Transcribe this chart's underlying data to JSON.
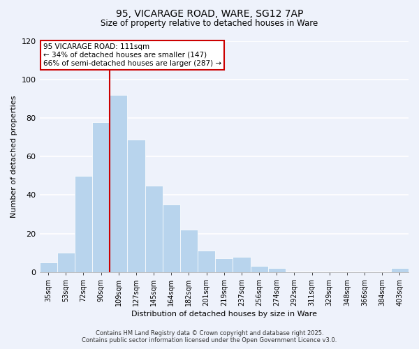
{
  "title_line1": "95, VICARAGE ROAD, WARE, SG12 7AP",
  "title_line2": "Size of property relative to detached houses in Ware",
  "xlabel": "Distribution of detached houses by size in Ware",
  "ylabel": "Number of detached properties",
  "categories": [
    "35sqm",
    "53sqm",
    "72sqm",
    "90sqm",
    "109sqm",
    "127sqm",
    "145sqm",
    "164sqm",
    "182sqm",
    "201sqm",
    "219sqm",
    "237sqm",
    "256sqm",
    "274sqm",
    "292sqm",
    "311sqm",
    "329sqm",
    "348sqm",
    "366sqm",
    "384sqm",
    "403sqm"
  ],
  "values": [
    5,
    10,
    50,
    78,
    92,
    69,
    45,
    35,
    22,
    11,
    7,
    8,
    3,
    2,
    0,
    0,
    0,
    0,
    0,
    0,
    2
  ],
  "bar_color": "#b8d4ed",
  "bar_edge_color": "#b8d4ed",
  "highlight_line_index": 4,
  "highlight_line_color": "#cc0000",
  "ylim": [
    0,
    120
  ],
  "yticks": [
    0,
    20,
    40,
    60,
    80,
    100,
    120
  ],
  "annotation_title": "95 VICARAGE ROAD: 111sqm",
  "annotation_line1": "← 34% of detached houses are smaller (147)",
  "annotation_line2": "66% of semi-detached houses are larger (287) →",
  "annotation_box_facecolor": "#ffffff",
  "annotation_box_edgecolor": "#cc0000",
  "footer_line1": "Contains HM Land Registry data © Crown copyright and database right 2025.",
  "footer_line2": "Contains public sector information licensed under the Open Government Licence v3.0.",
  "background_color": "#eef2fb",
  "grid_color": "#d8dff0"
}
